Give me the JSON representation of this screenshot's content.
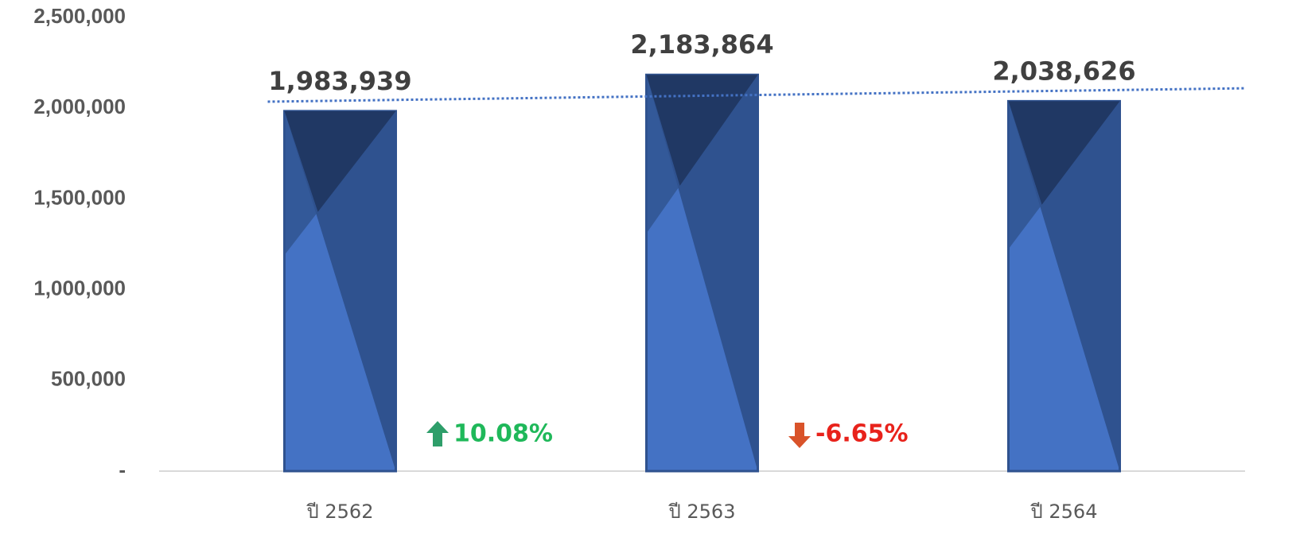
{
  "chart_data": {
    "type": "bar",
    "categories": [
      "ปี 2562",
      "ปี 2563",
      "ปี 2564"
    ],
    "values": [
      1983939,
      2183864,
      2038626
    ],
    "value_labels": [
      "1,983,939",
      "2,183,864",
      "2,038,626"
    ],
    "color": "#4472c4",
    "ylim": [
      0,
      2500000
    ],
    "yticks": [
      {
        "value": 0,
        "label": "-"
      },
      {
        "value": 500000,
        "label": "500,000"
      },
      {
        "value": 1000000,
        "label": "1,000,000"
      },
      {
        "value": 1500000,
        "label": "1,500,000"
      },
      {
        "value": 2000000,
        "label": "2,000,000"
      },
      {
        "value": 2500000,
        "label": "2,500,000"
      }
    ],
    "grid": false,
    "trendline": true,
    "annotations": [
      {
        "text": "10.08%",
        "direction": "up",
        "color": "#1fb85a"
      },
      {
        "text": "-6.65%",
        "direction": "down",
        "color": "#e8221b"
      }
    ]
  }
}
